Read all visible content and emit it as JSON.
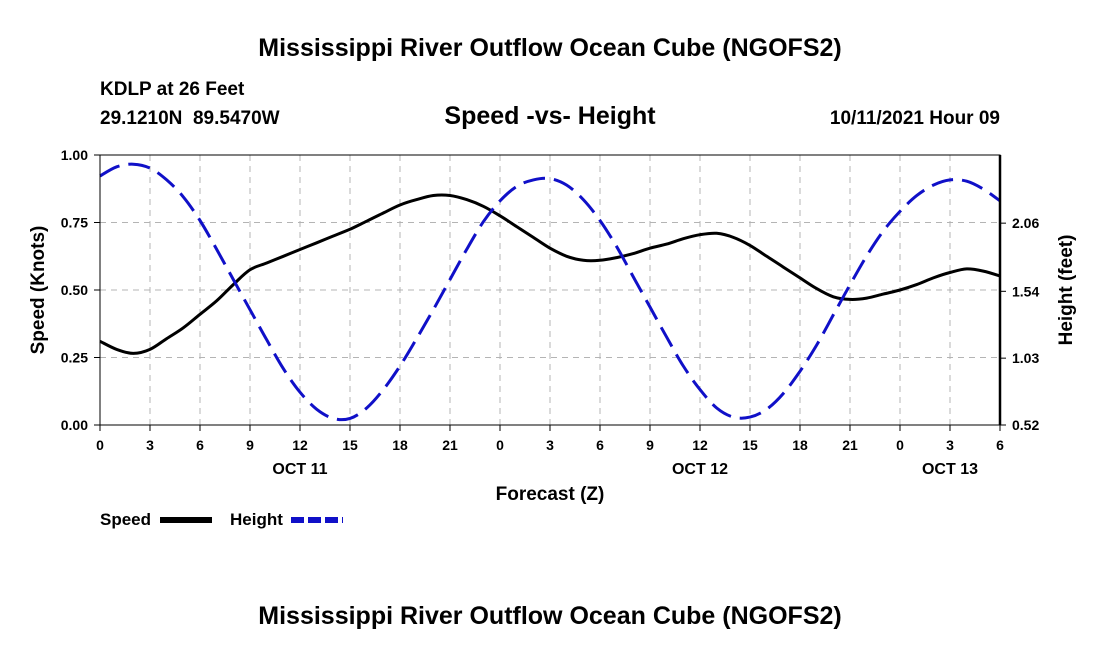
{
  "chart_data": {
    "type": "line",
    "title": "Mississippi River Outflow Ocean Cube (NGOFS2)",
    "footer_title": "Mississippi River Outflow Ocean Cube (NGOFS2)",
    "subtitle": "Speed -vs- Height",
    "station_line": "KDLP at 26 Feet",
    "coord_line": "29.1210N  89.5470W",
    "run_time": "10/11/2021 Hour 09",
    "xlabel": "Forecast (Z)",
    "ylabel_left": "Speed (Knots)",
    "ylabel_right": "Height (feet)",
    "x_range_hours": [
      0,
      54
    ],
    "x_ticks": [
      "0",
      "3",
      "6",
      "9",
      "12",
      "15",
      "18",
      "21",
      "0",
      "3",
      "6",
      "9",
      "12",
      "15",
      "18",
      "21",
      "0",
      "3",
      "6"
    ],
    "date_labels": [
      {
        "label": "OCT 11",
        "hour": 12
      },
      {
        "label": "OCT 12",
        "hour": 36
      },
      {
        "label": "OCT 13",
        "hour": 51
      }
    ],
    "y_left": {
      "min": 0.0,
      "max": 1.0,
      "ticks": [
        "0.00",
        "0.25",
        "0.50",
        "0.75",
        "1.00"
      ]
    },
    "y_right": {
      "min": 0.52,
      "max": 2.58,
      "ticks": [
        "0.52",
        "1.03",
        "1.54",
        "2.06"
      ]
    },
    "legend_position": "bottom-left",
    "grid": true,
    "series": [
      {
        "name": "Speed",
        "axis": "left",
        "color": "#000000",
        "style": "solid",
        "x": [
          0,
          1,
          2,
          3,
          4,
          5,
          6,
          7,
          8,
          9,
          10,
          11,
          12,
          13,
          14,
          15,
          16,
          17,
          18,
          19,
          20,
          21,
          22,
          23,
          24,
          25,
          26,
          27,
          28,
          29,
          30,
          31,
          32,
          33,
          34,
          35,
          36,
          37,
          38,
          39,
          40,
          41,
          42,
          43,
          44,
          45,
          46,
          47,
          48,
          49,
          50,
          51,
          52,
          53,
          54
        ],
        "values": [
          0.31,
          0.28,
          0.265,
          0.28,
          0.32,
          0.36,
          0.41,
          0.46,
          0.52,
          0.575,
          0.6,
          0.625,
          0.65,
          0.675,
          0.7,
          0.725,
          0.755,
          0.785,
          0.815,
          0.835,
          0.85,
          0.85,
          0.835,
          0.81,
          0.775,
          0.735,
          0.695,
          0.655,
          0.625,
          0.61,
          0.61,
          0.62,
          0.635,
          0.655,
          0.67,
          0.69,
          0.705,
          0.71,
          0.695,
          0.665,
          0.625,
          0.585,
          0.545,
          0.505,
          0.475,
          0.465,
          0.47,
          0.485,
          0.5,
          0.52,
          0.545,
          0.565,
          0.578,
          0.57,
          0.552
        ]
      },
      {
        "name": "Height",
        "axis": "right",
        "color": "#1010c8",
        "style": "dashed",
        "x": [
          0,
          1,
          2,
          3,
          4,
          5,
          6,
          7,
          8,
          9,
          10,
          11,
          12,
          13,
          14,
          15,
          16,
          17,
          18,
          19,
          20,
          21,
          22,
          23,
          24,
          25,
          26,
          27,
          28,
          29,
          30,
          31,
          32,
          33,
          34,
          35,
          36,
          37,
          38,
          39,
          40,
          41,
          42,
          43,
          44,
          45,
          46,
          47,
          48,
          49,
          50,
          51,
          52,
          53,
          54
        ],
        "values": [
          2.42,
          2.49,
          2.51,
          2.48,
          2.39,
          2.26,
          2.08,
          1.86,
          1.63,
          1.4,
          1.17,
          0.95,
          0.77,
          0.64,
          0.57,
          0.57,
          0.65,
          0.79,
          0.97,
          1.18,
          1.4,
          1.63,
          1.86,
          2.07,
          2.23,
          2.34,
          2.39,
          2.4,
          2.35,
          2.24,
          2.08,
          1.88,
          1.65,
          1.42,
          1.19,
          0.97,
          0.79,
          0.65,
          0.58,
          0.58,
          0.64,
          0.76,
          0.93,
          1.13,
          1.36,
          1.59,
          1.81,
          2.0,
          2.15,
          2.27,
          2.35,
          2.39,
          2.38,
          2.32,
          2.23
        ]
      }
    ]
  }
}
